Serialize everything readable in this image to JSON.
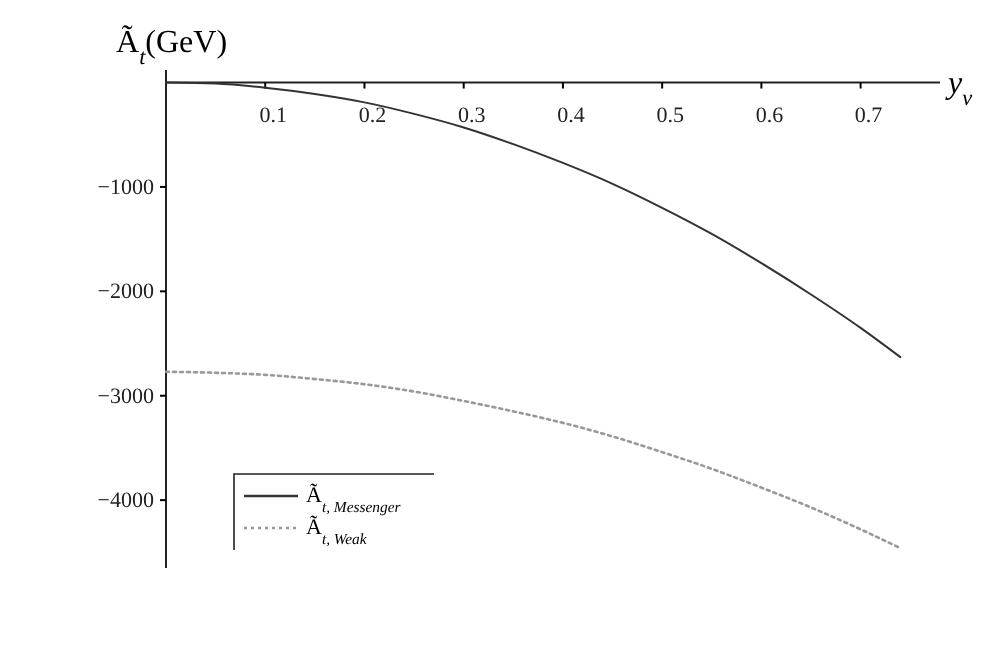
{
  "chart_data": {
    "type": "line",
    "xlabel": "y$_{ν}$",
    "ylabel": "Ã$_{t}$(GeV)",
    "xlim": [
      0,
      0.78
    ],
    "ylim": [
      -4650,
      120
    ],
    "xticks": [
      0.1,
      0.2,
      0.3,
      0.4,
      0.5,
      0.6,
      0.7
    ],
    "yticks": [
      -1000,
      -2000,
      -3000,
      -4000
    ],
    "legend": "bottom left",
    "series": [
      {
        "name": "Ã$_{t, Messenger}$",
        "color": "#333333",
        "line_style": "solid",
        "x": [
          0,
          0.05,
          0.1,
          0.15,
          0.2,
          0.25,
          0.3,
          0.35,
          0.4,
          0.45,
          0.5,
          0.55,
          0.6,
          0.65,
          0.7,
          0.74
        ],
        "values": [
          0,
          -10,
          -50,
          -110,
          -190,
          -300,
          -430,
          -590,
          -770,
          -970,
          -1200,
          -1450,
          -1730,
          -2030,
          -2350,
          -2630
        ]
      },
      {
        "name": "Ã$_{t, Weak}$",
        "color": "#999999",
        "line_style": "dotted",
        "x": [
          0,
          0.05,
          0.1,
          0.15,
          0.2,
          0.25,
          0.3,
          0.35,
          0.4,
          0.45,
          0.5,
          0.55,
          0.6,
          0.65,
          0.7,
          0.74
        ],
        "values": [
          -2770,
          -2780,
          -2800,
          -2840,
          -2890,
          -2960,
          -3050,
          -3150,
          -3260,
          -3390,
          -3540,
          -3700,
          -3880,
          -4070,
          -4280,
          -4460
        ]
      }
    ]
  }
}
